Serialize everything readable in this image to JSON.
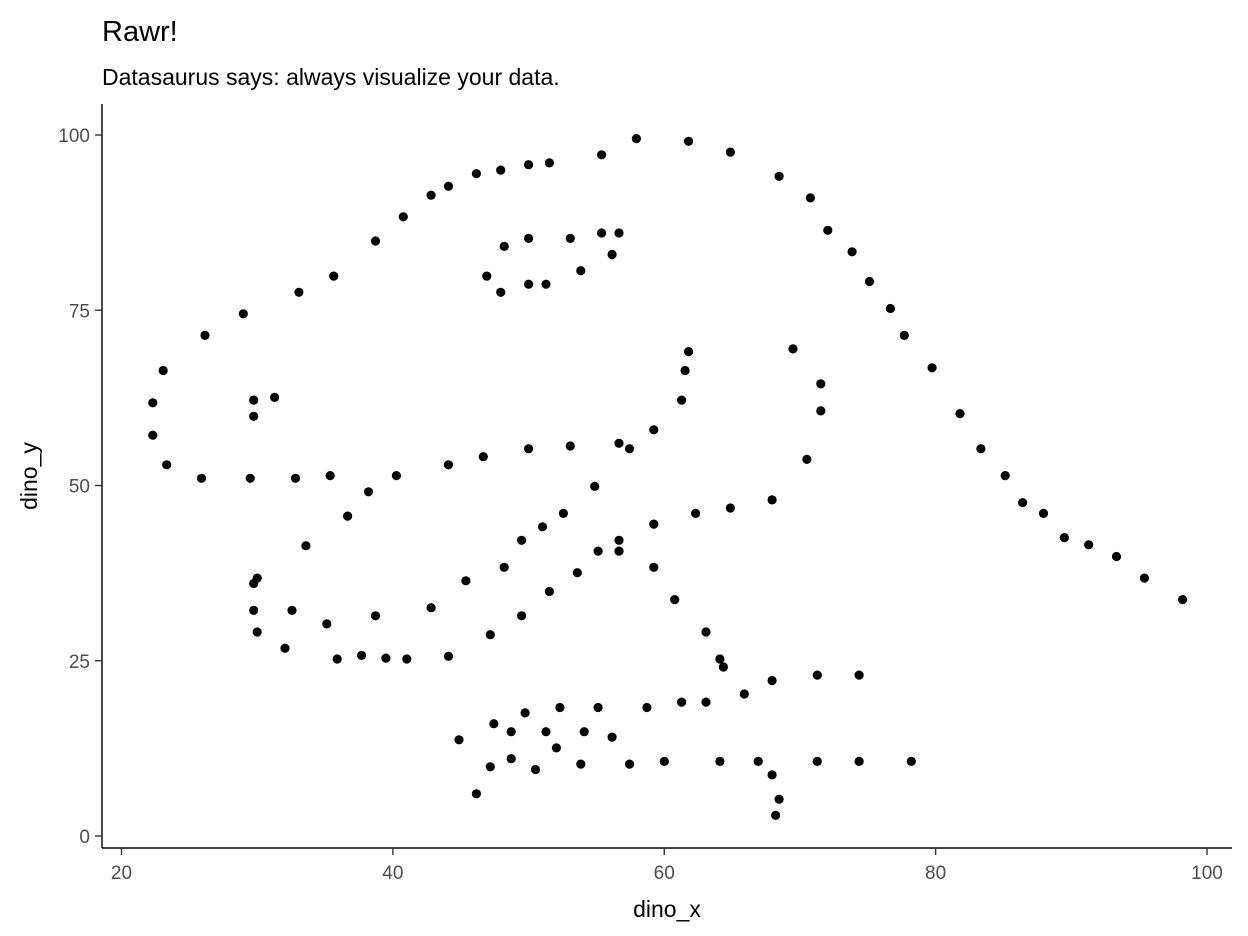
{
  "chart_data": {
    "type": "scatter",
    "title": "Rawr!",
    "subtitle": "Datasaurus says: always visualize your data.",
    "xlabel": "dino_x",
    "ylabel": "dino_y",
    "xlim": [
      20,
      100
    ],
    "ylim": [
      0,
      100
    ],
    "x_ticks": [
      20,
      40,
      60,
      80,
      100
    ],
    "y_ticks": [
      0,
      25,
      50,
      75,
      100
    ],
    "grid": false,
    "legend": "none",
    "point_color": "#000000",
    "points": [
      [
        55.3846,
        97.1795
      ],
      [
        51.5385,
        96.0256
      ],
      [
        46.1538,
        94.4872
      ],
      [
        42.8205,
        91.4103
      ],
      [
        40.7692,
        88.3333
      ],
      [
        38.7179,
        84.8718
      ],
      [
        35.641,
        79.8718
      ],
      [
        33.0769,
        77.5641
      ],
      [
        28.9744,
        74.4872
      ],
      [
        26.1538,
        71.4103
      ],
      [
        23.0769,
        66.4103
      ],
      [
        22.3077,
        61.7949
      ],
      [
        22.3077,
        57.1795
      ],
      [
        23.3333,
        52.9487
      ],
      [
        25.8974,
        51.0256
      ],
      [
        29.4872,
        51.0256
      ],
      [
        32.8205,
        51.0256
      ],
      [
        35.3846,
        51.4103
      ],
      [
        40.2564,
        51.4103
      ],
      [
        44.1026,
        52.9487
      ],
      [
        46.6667,
        54.1026
      ],
      [
        50.0,
        55.2564
      ],
      [
        53.0769,
        55.641
      ],
      [
        56.6667,
        56.0256
      ],
      [
        59.2308,
        57.9487
      ],
      [
        61.2821,
        62.1795
      ],
      [
        61.5385,
        66.4103
      ],
      [
        61.7949,
        69.1026
      ],
      [
        57.4359,
        55.2564
      ],
      [
        54.8718,
        49.8718
      ],
      [
        52.5641,
        46.0256
      ],
      [
        48.2051,
        38.3333
      ],
      [
        49.4872,
        42.1795
      ],
      [
        51.0256,
        44.1026
      ],
      [
        45.3846,
        36.4103
      ],
      [
        42.8205,
        32.5641
      ],
      [
        38.7179,
        31.4103
      ],
      [
        35.1282,
        30.2564
      ],
      [
        32.5641,
        32.1795
      ],
      [
        30.0,
        36.7949
      ],
      [
        33.5897,
        41.4103
      ],
      [
        36.6667,
        45.641
      ],
      [
        38.2051,
        49.1026
      ],
      [
        29.7436,
        36.0256
      ],
      [
        29.7436,
        32.1795
      ],
      [
        30.0,
        29.1026
      ],
      [
        32.0513,
        26.7949
      ],
      [
        35.8974,
        25.2564
      ],
      [
        41.0256,
        25.2564
      ],
      [
        44.1026,
        25.641
      ],
      [
        47.1795,
        28.718
      ],
      [
        49.4872,
        31.4103
      ],
      [
        51.5385,
        34.8718
      ],
      [
        53.5897,
        37.5641
      ],
      [
        55.1282,
        40.641
      ],
      [
        56.6667,
        42.1795
      ],
      [
        59.2308,
        44.4872
      ],
      [
        62.3077,
        46.0256
      ],
      [
        64.8718,
        46.7949
      ],
      [
        67.9487,
        47.9487
      ],
      [
        70.5128,
        53.718
      ],
      [
        71.5385,
        60.641
      ],
      [
        71.5385,
        64.4872
      ],
      [
        69.4872,
        69.4872
      ],
      [
        46.9231,
        79.8718
      ],
      [
        48.2051,
        84.1026
      ],
      [
        50.0,
        85.2564
      ],
      [
        53.0769,
        85.2564
      ],
      [
        55.3846,
        86.0256
      ],
      [
        56.6667,
        86.0256
      ],
      [
        56.1538,
        82.9487
      ],
      [
        53.8462,
        80.641
      ],
      [
        51.2821,
        78.718
      ],
      [
        50.0,
        78.718
      ],
      [
        47.9487,
        77.5641
      ],
      [
        29.7436,
        59.8718
      ],
      [
        29.7436,
        62.1795
      ],
      [
        31.2821,
        62.5641
      ],
      [
        57.9487,
        99.4872
      ],
      [
        61.7949,
        99.1026
      ],
      [
        64.8718,
        97.5641
      ],
      [
        68.4615,
        94.1026
      ],
      [
        70.7692,
        91.0256
      ],
      [
        72.0513,
        86.4103
      ],
      [
        73.8462,
        83.3333
      ],
      [
        75.1282,
        79.1026
      ],
      [
        76.6667,
        75.2564
      ],
      [
        77.6923,
        71.4103
      ],
      [
        79.7436,
        66.7949
      ],
      [
        81.7949,
        60.2564
      ],
      [
        83.3333,
        55.2564
      ],
      [
        85.1282,
        51.4103
      ],
      [
        86.4103,
        47.5641
      ],
      [
        87.9487,
        46.0256
      ],
      [
        89.4872,
        42.5641
      ],
      [
        93.3333,
        39.8718
      ],
      [
        95.3846,
        36.7949
      ],
      [
        98.2051,
        33.718
      ],
      [
        56.6667,
        40.641
      ],
      [
        59.2308,
        38.3333
      ],
      [
        60.7692,
        33.718
      ],
      [
        63.0769,
        29.1026
      ],
      [
        64.1026,
        25.2564
      ],
      [
        64.359,
        24.1026
      ],
      [
        74.359,
        22.9487
      ],
      [
        71.2821,
        22.9487
      ],
      [
        67.9487,
        22.1795
      ],
      [
        65.8974,
        20.2564
      ],
      [
        63.0769,
        19.1026
      ],
      [
        61.2821,
        19.1026
      ],
      [
        58.7179,
        18.3333
      ],
      [
        55.1282,
        18.3333
      ],
      [
        52.3077,
        18.3333
      ],
      [
        49.7436,
        17.5641
      ],
      [
        47.4359,
        16.0256
      ],
      [
        44.8718,
        13.718
      ],
      [
        48.7179,
        14.8718
      ],
      [
        51.2821,
        14.8718
      ],
      [
        54.1026,
        14.8718
      ],
      [
        56.1538,
        14.1026
      ],
      [
        52.0513,
        12.5641
      ],
      [
        48.7179,
        11.0256
      ],
      [
        47.1795,
        9.8718
      ],
      [
        46.1538,
        6.0256
      ],
      [
        50.5128,
        9.4872
      ],
      [
        53.8462,
        10.2564
      ],
      [
        57.4359,
        10.2564
      ],
      [
        60.0,
        10.641
      ],
      [
        64.1026,
        10.641
      ],
      [
        66.9231,
        10.641
      ],
      [
        71.2821,
        10.641
      ],
      [
        74.359,
        10.641
      ],
      [
        78.2051,
        10.641
      ],
      [
        67.9487,
        8.7179
      ],
      [
        68.4615,
        5.2564
      ],
      [
        68.2051,
        2.9487
      ],
      [
        37.6923,
        25.7692
      ],
      [
        39.4872,
        25.3846
      ],
      [
        91.2821,
        41.5385
      ],
      [
        50.0,
        95.7692
      ],
      [
        47.9487,
        95.0
      ],
      [
        44.1026,
        92.6923
      ]
    ]
  }
}
